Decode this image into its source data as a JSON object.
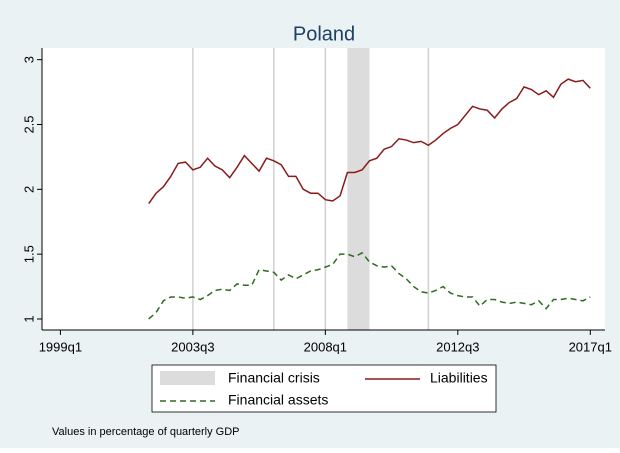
{
  "chart_data": {
    "type": "line",
    "title": "Poland",
    "x": [
      168,
      169,
      170,
      171,
      172,
      173,
      174,
      175,
      176,
      177,
      178,
      179,
      180,
      181,
      182,
      183,
      184,
      185,
      186,
      187,
      188,
      189,
      190,
      191,
      192,
      193,
      194,
      195,
      196,
      197,
      198,
      199,
      200,
      201,
      202,
      203,
      204,
      205,
      206,
      207,
      208,
      209,
      210,
      211,
      212,
      213,
      214,
      215,
      216,
      217,
      218,
      219,
      220,
      221,
      222,
      223,
      224,
      225,
      226,
      227,
      228
    ],
    "series": [
      {
        "name": "Liabilities",
        "color": "#8b1a1a",
        "dash": false,
        "values": [
          1.89,
          1.97,
          2.02,
          2.1,
          2.2,
          2.21,
          2.15,
          2.17,
          2.24,
          2.18,
          2.15,
          2.09,
          2.17,
          2.26,
          2.2,
          2.14,
          2.24,
          2.22,
          2.19,
          2.1,
          2.1,
          2.0,
          1.97,
          1.97,
          1.92,
          1.91,
          1.95,
          2.13,
          2.13,
          2.15,
          2.22,
          2.24,
          2.31,
          2.33,
          2.39,
          2.38,
          2.36,
          2.37,
          2.34,
          2.38,
          2.43,
          2.47,
          2.5,
          2.57,
          2.64,
          2.62,
          2.61,
          2.55,
          2.62,
          2.67,
          2.7,
          2.79,
          2.77,
          2.73,
          2.76,
          2.71,
          2.81,
          2.85,
          2.83,
          2.84,
          2.78
        ]
      },
      {
        "name": "Financial assets",
        "color": "#2e6b1f",
        "dash": true,
        "values": [
          1.0,
          1.05,
          1.14,
          1.17,
          1.17,
          1.16,
          1.17,
          1.15,
          1.18,
          1.22,
          1.23,
          1.22,
          1.27,
          1.26,
          1.26,
          1.38,
          1.37,
          1.36,
          1.3,
          1.34,
          1.31,
          1.34,
          1.37,
          1.38,
          1.4,
          1.42,
          1.5,
          1.5,
          1.48,
          1.51,
          1.44,
          1.41,
          1.4,
          1.41,
          1.35,
          1.31,
          1.25,
          1.21,
          1.2,
          1.22,
          1.25,
          1.2,
          1.18,
          1.17,
          1.17,
          1.1,
          1.15,
          1.15,
          1.13,
          1.12,
          1.13,
          1.12,
          1.11,
          1.14,
          1.08,
          1.15,
          1.15,
          1.16,
          1.15,
          1.14,
          1.17
        ]
      }
    ],
    "shaded_region": {
      "name": "Financial crisis",
      "start": 195,
      "end": 198,
      "color": "#dcdcdc"
    },
    "xlines": [
      174,
      185,
      192,
      206
    ],
    "xlim": [
      153.5,
      230
    ],
    "xticks": [
      {
        "value": 156,
        "label": "1999q1"
      },
      {
        "value": 174,
        "label": "2003q3"
      },
      {
        "value": 192,
        "label": "2008q1"
      },
      {
        "value": 210,
        "label": "2012q3"
      },
      {
        "value": 228,
        "label": "2017q1"
      }
    ],
    "ylim": [
      0.915,
      3.09
    ],
    "yticks": [
      1,
      1.5,
      2,
      2.5,
      3
    ],
    "note": "Values in percentage of quarterly GDP"
  }
}
